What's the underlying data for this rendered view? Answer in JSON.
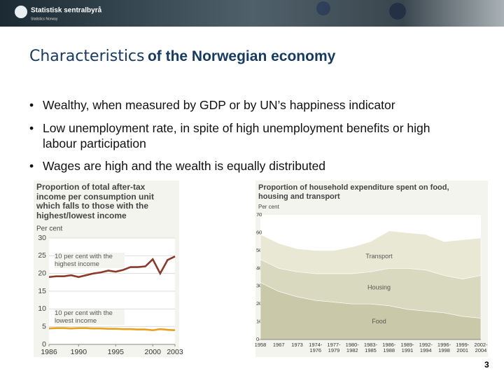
{
  "header": {
    "logo": "Statistisk sentralbyrå",
    "logo_sub": "Statistics Norway"
  },
  "title_lead": "Characteristics",
  "title_rest": "of the Norwegian economy",
  "bullets": [
    "Wealthy, when measured by GDP or by UN’s happiness indicator",
    "Low unemployment rate, in spite of high unemployment benefits or high labour participation",
    "Wages are high and the wealth is equally distributed"
  ],
  "page_number": "3",
  "chart_data": [
    {
      "type": "line",
      "title": "Proportion of total after-tax income per consumption unit which falls to those with the highest/lowest income",
      "y_label": "Per cent",
      "x": [
        1986,
        1987,
        1988,
        1989,
        1990,
        1991,
        1992,
        1993,
        1994,
        1995,
        1996,
        1997,
        1998,
        1999,
        2000,
        2001,
        2002,
        2003
      ],
      "xlim": [
        1986,
        2003
      ],
      "xticks": [
        1986,
        1990,
        1995,
        2000,
        2003
      ],
      "ylim": [
        0,
        30
      ],
      "yticks": [
        0,
        5,
        10,
        15,
        20,
        25,
        30
      ],
      "grid": true,
      "series": [
        {
          "name": "10 per cent with the highest income",
          "color": "#8b3a2a",
          "values": [
            19.0,
            19.2,
            19.2,
            19.5,
            19.0,
            19.5,
            20.0,
            20.3,
            20.8,
            20.5,
            21.0,
            21.8,
            21.8,
            22.0,
            24.0,
            20.0,
            23.8,
            24.8
          ]
        },
        {
          "name": "10 per cent with the lowest income",
          "color": "#e8a020",
          "values": [
            4.5,
            4.6,
            4.6,
            4.5,
            4.6,
            4.6,
            4.5,
            4.5,
            4.4,
            4.4,
            4.3,
            4.3,
            4.2,
            4.2,
            4.0,
            4.3,
            4.1,
            4.0
          ]
        }
      ]
    },
    {
      "type": "stacked_area",
      "title": "Proportion of household expenditure spent on food, housing and transport",
      "y_label": "Per cent",
      "categories": [
        "1958",
        "1967",
        "1973",
        "1974-1976",
        "1977-1979",
        "1980-1982",
        "1983-1985",
        "1986-1988",
        "1989-1991",
        "1992-1994",
        "1996-1998",
        "1999-2001",
        "2002-2004"
      ],
      "ylim": [
        0,
        70
      ],
      "yticks": [
        0,
        10,
        20,
        30,
        40,
        50,
        60,
        70
      ],
      "grid": false,
      "series": [
        {
          "name": "Food",
          "color": "#c9c9a9",
          "values": [
            32,
            27,
            24,
            22,
            21,
            20,
            20,
            19,
            17,
            16,
            15,
            13,
            12
          ]
        },
        {
          "name": "Housing",
          "color": "#d9d9bf",
          "values": [
            13,
            13,
            14,
            15,
            16,
            17,
            18,
            21,
            23,
            23,
            21,
            21,
            24
          ]
        },
        {
          "name": "Transport",
          "color": "#e8e8d5",
          "values": [
            14,
            14,
            13,
            13,
            13,
            15,
            17,
            21,
            20,
            20,
            19,
            22,
            21
          ]
        }
      ]
    }
  ]
}
